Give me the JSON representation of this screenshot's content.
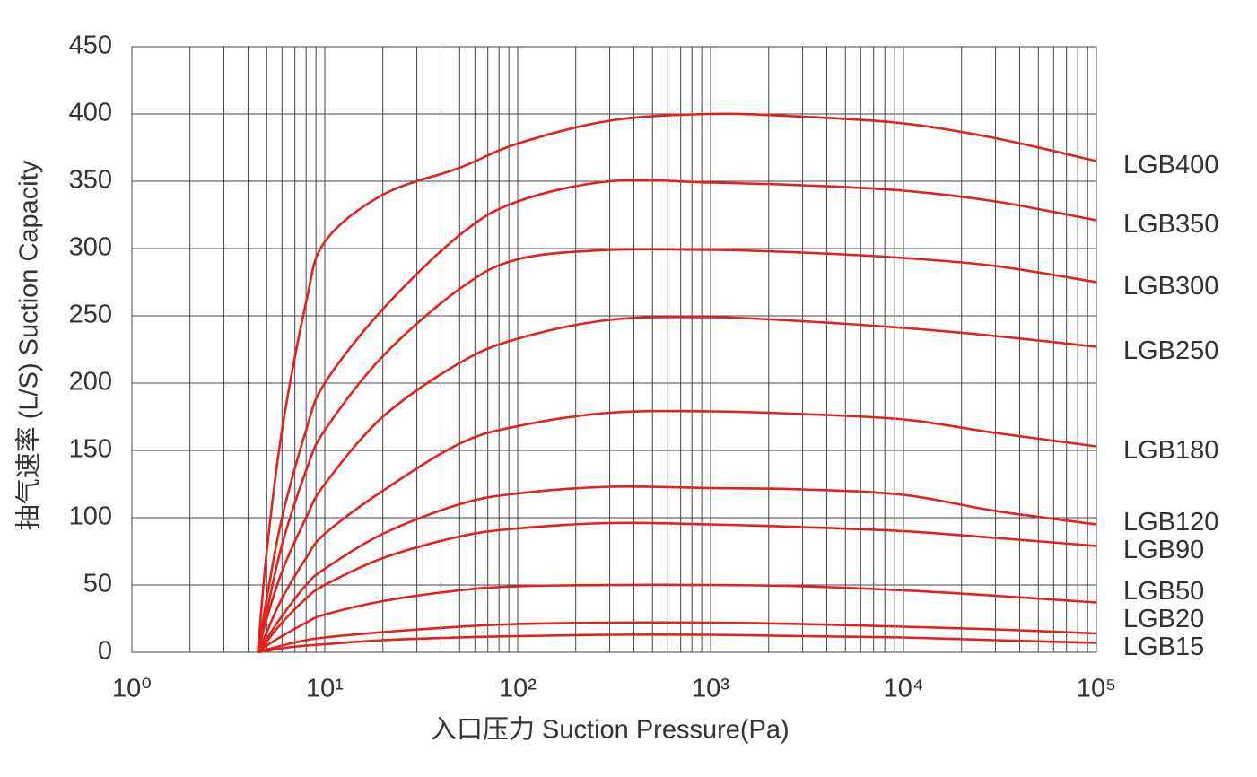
{
  "chart_data": {
    "type": "line",
    "x_label": "入口压力 Suction Pressure(Pa)",
    "y_label": "抽气速率 (L/S) Suction Capacity",
    "x": [
      4.5,
      5,
      6,
      8,
      10,
      20,
      50,
      100,
      300,
      1000,
      3000,
      10000,
      30000,
      100000
    ],
    "series": [
      {
        "name": "LGB400",
        "color": "#e3231b",
        "values": [
          0,
          75,
          165,
          260,
          305,
          340,
          360,
          378,
          395,
          400,
          398,
          393,
          382,
          365
        ]
      },
      {
        "name": "LGB350",
        "color": "#e3231b",
        "values": [
          0,
          40,
          100,
          165,
          200,
          255,
          310,
          335,
          350,
          349,
          347,
          343,
          335,
          321
        ]
      },
      {
        "name": "LGB300",
        "color": "#e3231b",
        "values": [
          0,
          30,
          80,
          135,
          165,
          220,
          270,
          292,
          299,
          299,
          297,
          293,
          287,
          275
        ]
      },
      {
        "name": "LGB250",
        "color": "#e3231b",
        "values": [
          0,
          25,
          60,
          100,
          125,
          175,
          215,
          233,
          247,
          249,
          246,
          241,
          235,
          227
        ]
      },
      {
        "name": "LGB180",
        "color": "#e3231b",
        "values": [
          0,
          15,
          40,
          70,
          88,
          120,
          155,
          168,
          178,
          179,
          177,
          173,
          163,
          153
        ]
      },
      {
        "name": "LGB120",
        "color": "#e3231b",
        "values": [
          0,
          10,
          27,
          50,
          62,
          88,
          110,
          118,
          123,
          122,
          121,
          117,
          105,
          95
        ]
      },
      {
        "name": "LGB90",
        "color": "#e3231b",
        "values": [
          0,
          8,
          22,
          40,
          50,
          70,
          86,
          92,
          96,
          95,
          93,
          90,
          85,
          79
        ]
      },
      {
        "name": "LGB50",
        "color": "#e3231b",
        "values": [
          0,
          5,
          12,
          22,
          28,
          38,
          46,
          49,
          50,
          50,
          49,
          46,
          42,
          37
        ]
      },
      {
        "name": "LGB20",
        "color": "#e3231b",
        "values": [
          0,
          2,
          5,
          9,
          11,
          15,
          19,
          21,
          22,
          22,
          21,
          19,
          17,
          14
        ]
      },
      {
        "name": "LGB15",
        "color": "#e3231b",
        "values": [
          0,
          1,
          3,
          5,
          6,
          9,
          11,
          12,
          13,
          13,
          12,
          11,
          9,
          7
        ]
      }
    ],
    "xlim": [
      1,
      100000
    ],
    "x_log": true,
    "xticks": [
      {
        "value": 1,
        "label": "10⁰"
      },
      {
        "value": 10,
        "label": "10¹"
      },
      {
        "value": 100,
        "label": "10²"
      },
      {
        "value": 1000,
        "label": "10³"
      },
      {
        "value": 10000,
        "label": "10⁴"
      },
      {
        "value": 100000,
        "label": "10⁵"
      }
    ],
    "ylim": [
      0,
      450
    ],
    "yticks": [
      0,
      50,
      100,
      150,
      200,
      250,
      300,
      350,
      400,
      450
    ],
    "grid": true
  }
}
